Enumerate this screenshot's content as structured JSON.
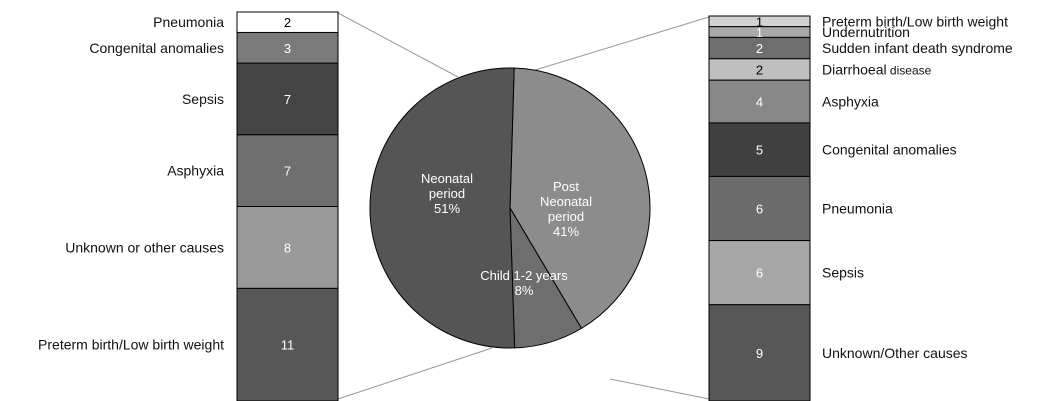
{
  "chart_data": {
    "type": "pie",
    "pie": {
      "slices": [
        {
          "label_lines": [
            "Neonatal",
            "period",
            "51%"
          ],
          "value": 51,
          "color": "#555555"
        },
        {
          "label_lines": [
            "Post",
            "Neonatal",
            "period",
            "41%"
          ],
          "value": 41,
          "color": "#8c8c8c"
        },
        {
          "label_lines": [
            "Child 1-2 years",
            "8%"
          ],
          "value": 8,
          "color": "#6e6e6e"
        }
      ]
    },
    "stacks": [
      {
        "side": "left",
        "detail_of": "Neonatal period",
        "segments": [
          {
            "label": "Pneumonia",
            "value": 2,
            "color": "#ffffff"
          },
          {
            "label": "Congenital anomalies",
            "value": 3,
            "color": "#7a7a7a"
          },
          {
            "label": "Sepsis",
            "value": 7,
            "color": "#444444"
          },
          {
            "label": "Asphyxia",
            "value": 7,
            "color": "#6e6e6e"
          },
          {
            "label": "Unknown or other causes",
            "value": 8,
            "color": "#999999"
          },
          {
            "label": "Preterm birth/Low birth weight",
            "value": 11,
            "color": "#575757"
          }
        ]
      },
      {
        "side": "right",
        "detail_of": "Post Neonatal period",
        "segments": [
          {
            "label": "Preterm birth/Low birth weight",
            "value": 1,
            "color": "#d2d2d2"
          },
          {
            "label": "Undernutrition",
            "value": 1,
            "color": "#a9a9a9"
          },
          {
            "label": "Sudden infant death syndrome",
            "value": 2,
            "color": "#6e6e6e"
          },
          {
            "label": "Diarrhoeal",
            "label_small": "disease",
            "value": 2,
            "color": "#bfbfbf"
          },
          {
            "label": "Asphyxia",
            "value": 4,
            "color": "#888888"
          },
          {
            "label": "Congenital anomalies",
            "value": 5,
            "color": "#404040"
          },
          {
            "label": "Pneumonia",
            "value": 6,
            "color": "#6b6b6b"
          },
          {
            "label": "Sepsis",
            "value": 6,
            "color": "#a6a6a6"
          },
          {
            "label": "Unknown/Other causes",
            "value": 9,
            "color": "#575757"
          }
        ]
      }
    ]
  }
}
